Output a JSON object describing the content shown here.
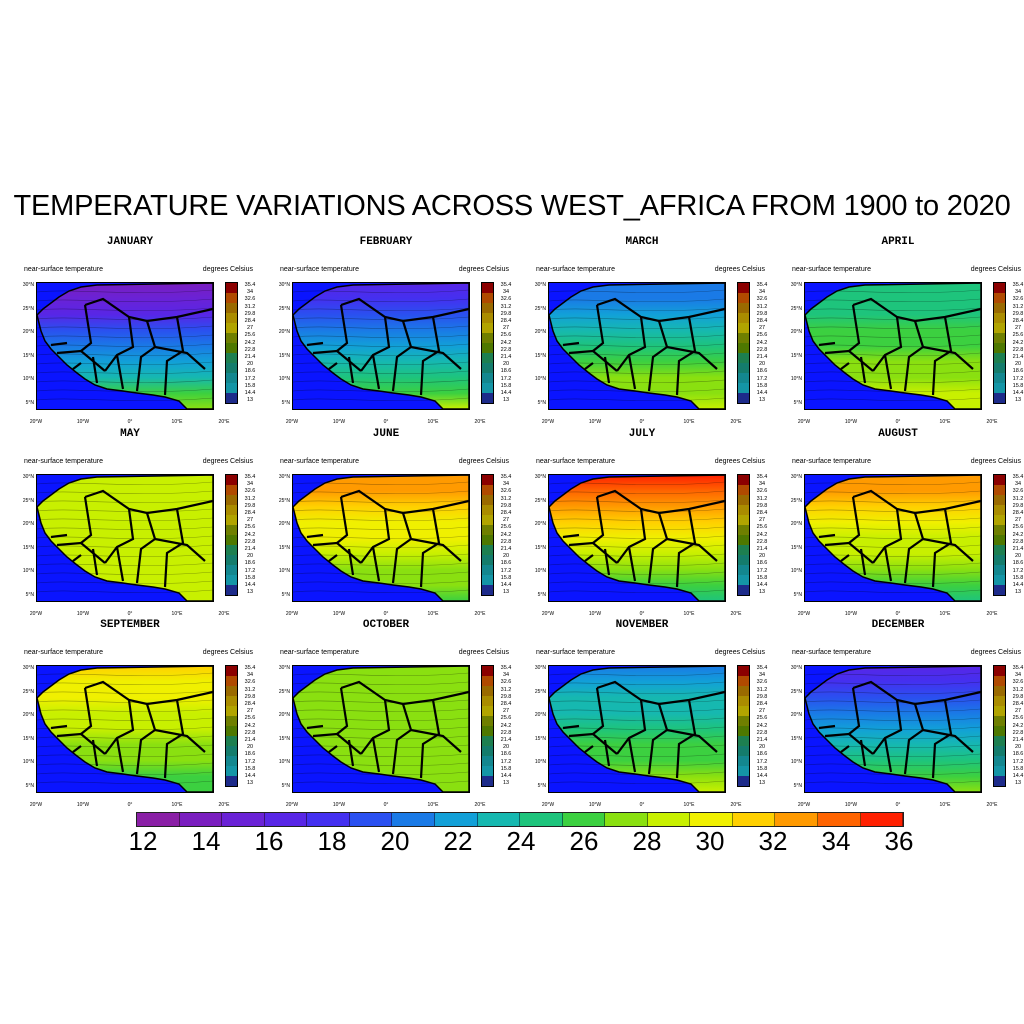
{
  "figure": {
    "title": "TEMPERATURE VARIATIONS ACROSS WEST_AFRICA FROM 1900 to 2020"
  },
  "panel_labels": {
    "left": "near-surface temperature",
    "right": "degrees Celsius",
    "lat_ticks": [
      "30°N",
      "25°N",
      "20°N",
      "15°N",
      "10°N",
      "5°N"
    ],
    "lon_ticks": [
      "20°W",
      "10°W",
      "0°",
      "10°E",
      "20°E"
    ]
  },
  "panel_legend": {
    "labels": [
      "35.4",
      "34",
      "32.6",
      "31.2",
      "29.8",
      "28.4",
      "27",
      "25.6",
      "24.2",
      "22.8",
      "21.4",
      "20",
      "18.6",
      "17.2",
      "15.8",
      "14.4",
      "13"
    ],
    "colors": [
      "#8b0000",
      "#b04a00",
      "#9a6a00",
      "#aa8c00",
      "#b1a400",
      "#6f7f00",
      "#4e7800",
      "#1d7f50",
      "#147c6c",
      "#13878f",
      "#1495a6",
      "#1d2b8a",
      "#162062",
      "#3a1580",
      "#2f0f62",
      "#2a0a43",
      "#1c0530"
    ]
  },
  "colorbar": {
    "labels": [
      "12",
      "14",
      "16",
      "18",
      "20",
      "22",
      "24",
      "26",
      "28",
      "30",
      "32",
      "34",
      "36"
    ],
    "colors": [
      "#8a1fa6",
      "#7a1ebf",
      "#6a22d6",
      "#5826e6",
      "#4430f0",
      "#2a50f0",
      "#1a7ae6",
      "#12a0d8",
      "#16b8b0",
      "#1ec47c",
      "#3cd040",
      "#8ae010",
      "#c8f000",
      "#f0f000",
      "#ffd000",
      "#ff9a00",
      "#ff6400",
      "#ff2000"
    ]
  },
  "chart_data": {
    "type": "heatmap",
    "title": "TEMPERATURE VARIATIONS ACROSS WEST_AFRICA FROM 1900 to 2020",
    "variable": "near-surface temperature",
    "units": "degrees Celsius",
    "colorbar_range": [
      12,
      36
    ],
    "panels": [
      {
        "month": "JANUARY",
        "mean_north": 14,
        "mean_south": 27
      },
      {
        "month": "FEBRUARY",
        "mean_north": 16,
        "mean_south": 28
      },
      {
        "month": "MARCH",
        "mean_north": 20,
        "mean_south": 29
      },
      {
        "month": "APRIL",
        "mean_north": 24,
        "mean_south": 29
      },
      {
        "month": "MAY",
        "mean_north": 29,
        "mean_south": 28
      },
      {
        "month": "JUNE",
        "mean_north": 33,
        "mean_south": 26
      },
      {
        "month": "JULY",
        "mean_north": 35,
        "mean_south": 25
      },
      {
        "month": "AUGUST",
        "mean_north": 33,
        "mean_south": 25
      },
      {
        "month": "SEPTEMBER",
        "mean_north": 31,
        "mean_south": 26
      },
      {
        "month": "OCTOBER",
        "mean_north": 27,
        "mean_south": 27
      },
      {
        "month": "NOVEMBER",
        "mean_north": 21,
        "mean_south": 28
      },
      {
        "month": "DECEMBER",
        "mean_north": 16,
        "mean_south": 27
      }
    ]
  }
}
